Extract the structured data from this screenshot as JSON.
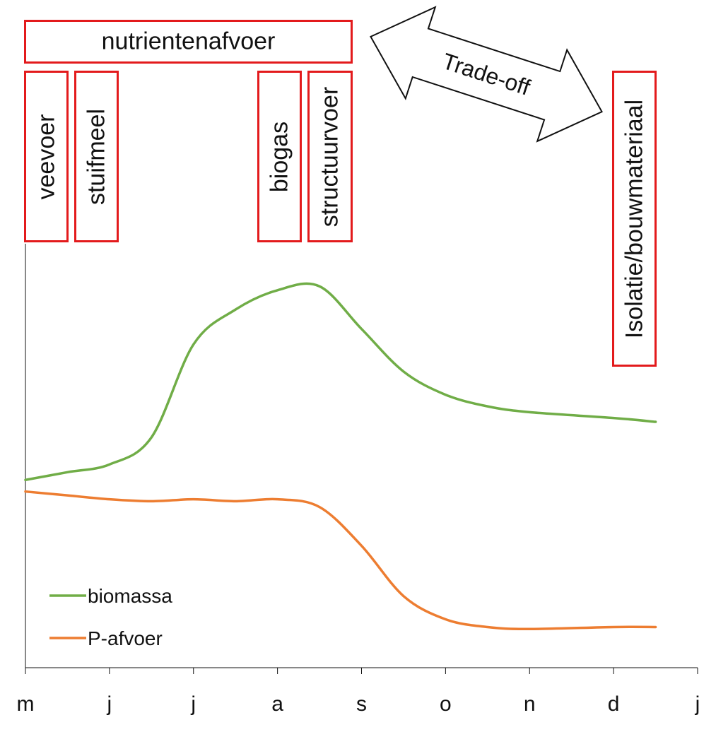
{
  "chart_data": {
    "type": "line",
    "x": [
      "m",
      "j",
      "j",
      "a",
      "s",
      "o",
      "n",
      "d",
      "j"
    ],
    "series": [
      {
        "name": "biomassa",
        "color": "#70ad47",
        "points": [
          [
            0,
            3.9
          ],
          [
            0.5,
            4.1
          ],
          [
            1,
            4.3
          ],
          [
            1.5,
            5.0
          ],
          [
            2,
            7.4
          ],
          [
            2.5,
            8.3
          ],
          [
            3,
            8.8
          ],
          [
            3.5,
            8.9
          ],
          [
            4,
            7.8
          ],
          [
            4.5,
            6.7
          ],
          [
            5,
            6.1
          ],
          [
            5.5,
            5.8
          ],
          [
            6,
            5.65
          ],
          [
            7,
            5.5
          ],
          [
            7.5,
            5.4
          ]
        ]
      },
      {
        "name": "P-afvoer",
        "color": "#ed7d31",
        "points": [
          [
            0,
            3.6
          ],
          [
            0.5,
            3.5
          ],
          [
            1,
            3.4
          ],
          [
            1.5,
            3.35
          ],
          [
            2,
            3.4
          ],
          [
            2.5,
            3.35
          ],
          [
            3,
            3.4
          ],
          [
            3.5,
            3.2
          ],
          [
            4,
            2.2
          ],
          [
            4.5,
            0.9
          ],
          [
            5,
            0.3
          ],
          [
            5.5,
            0.1
          ],
          [
            6,
            0.05
          ],
          [
            7,
            0.1
          ],
          [
            7.5,
            0.1
          ]
        ]
      }
    ],
    "xlim": [
      0,
      8
    ],
    "ylim": [
      -0.95,
      10
    ],
    "grid": false,
    "legend": "bottom-left"
  },
  "boxes": {
    "nutrientenafvoer": "nutrientenafvoer",
    "veevoer": "veevoer",
    "stuifmeel": "stuifmeel",
    "biogas": "biogas",
    "structuurvoer": "structuurvoer",
    "isolatie": "Isolatie/bouwmateriaal"
  },
  "arrow_label": "Trade-off",
  "border_color": "#e31a1c"
}
